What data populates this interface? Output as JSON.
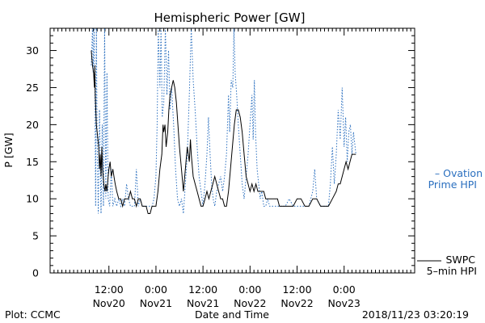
{
  "chart_data": {
    "type": "line",
    "title": "Hemispheric Power [GW]",
    "ylabel": "P [GW]",
    "xlabel": "Date and Time",
    "ylim": [
      0,
      33
    ],
    "y_ticks": [
      0,
      5,
      10,
      15,
      20,
      25,
      30
    ],
    "x_hours_range": [
      -15,
      78
    ],
    "x_ticks": [
      {
        "hours": 0,
        "line1": "12:00",
        "line2": "Nov20"
      },
      {
        "hours": 12,
        "line1": "0:00",
        "line2": "Nov21"
      },
      {
        "hours": 24,
        "line1": "12:00",
        "line2": "Nov21"
      },
      {
        "hours": 36,
        "line1": "0:00",
        "line2": "Nov22"
      },
      {
        "hours": 48,
        "line1": "12:00",
        "line2": "Nov22"
      },
      {
        "hours": 60,
        "line1": "0:00",
        "line2": "Nov23"
      }
    ],
    "footer_left": "Plot: CCMC",
    "footer_right": "2018/11/23 03:20:19",
    "legend": {
      "ovation": {
        "line1": "– Ovation",
        "line2": "Prime HPI",
        "color": "#2a6fbf"
      },
      "swpc": {
        "line1": "SWPC",
        "line2": "5–min HPI",
        "color": "#000000"
      }
    },
    "series": [
      {
        "name": "SWPC 5-min HPI",
        "color": "#000000",
        "style": "solid",
        "points": [
          [
            -4.5,
            30
          ],
          [
            -4.2,
            28
          ],
          [
            -3.9,
            27
          ],
          [
            -3.7,
            25
          ],
          [
            -3.6,
            28
          ],
          [
            -3.5,
            24
          ],
          [
            -3.2,
            20
          ],
          [
            -3.0,
            19
          ],
          [
            -2.8,
            18
          ],
          [
            -2.6,
            17
          ],
          [
            -2.4,
            14
          ],
          [
            -2.2,
            16
          ],
          [
            -2.0,
            13
          ],
          [
            -1.8,
            17
          ],
          [
            -1.6,
            14
          ],
          [
            -1.3,
            12
          ],
          [
            -1.0,
            11
          ],
          [
            -0.8,
            12
          ],
          [
            -0.5,
            11
          ],
          [
            -0.2,
            13
          ],
          [
            0.0,
            14
          ],
          [
            0.3,
            15
          ],
          [
            0.6,
            13
          ],
          [
            1.0,
            14
          ],
          [
            1.3,
            13
          ],
          [
            1.6,
            12
          ],
          [
            2.0,
            11
          ],
          [
            2.5,
            10
          ],
          [
            3.0,
            10
          ],
          [
            3.5,
            9
          ],
          [
            4.0,
            10
          ],
          [
            4.5,
            10
          ],
          [
            5.0,
            10
          ],
          [
            5.5,
            11
          ],
          [
            6.0,
            10
          ],
          [
            6.5,
            10
          ],
          [
            7.0,
            9
          ],
          [
            7.5,
            10
          ],
          [
            8.0,
            10
          ],
          [
            8.5,
            9
          ],
          [
            9.0,
            9
          ],
          [
            9.5,
            9
          ],
          [
            10.0,
            8
          ],
          [
            10.5,
            8
          ],
          [
            11.0,
            9
          ],
          [
            11.5,
            9
          ],
          [
            12.0,
            9
          ],
          [
            12.5,
            11
          ],
          [
            13.0,
            14
          ],
          [
            13.5,
            16
          ],
          [
            13.8,
            20
          ],
          [
            14.0,
            19
          ],
          [
            14.3,
            20
          ],
          [
            14.6,
            17
          ],
          [
            15.0,
            19
          ],
          [
            15.3,
            22
          ],
          [
            15.6,
            24
          ],
          [
            16.0,
            25
          ],
          [
            16.4,
            26
          ],
          [
            16.8,
            25
          ],
          [
            17.2,
            23
          ],
          [
            17.6,
            20
          ],
          [
            18.0,
            17
          ],
          [
            18.5,
            14
          ],
          [
            19.0,
            11
          ],
          [
            19.5,
            14
          ],
          [
            20.0,
            17
          ],
          [
            20.5,
            15
          ],
          [
            20.8,
            18
          ],
          [
            21.0,
            16
          ],
          [
            21.5,
            13
          ],
          [
            22.0,
            12
          ],
          [
            22.5,
            11
          ],
          [
            23.0,
            10
          ],
          [
            23.5,
            9
          ],
          [
            24.0,
            9
          ],
          [
            24.5,
            10
          ],
          [
            25.0,
            11
          ],
          [
            25.5,
            10
          ],
          [
            26.0,
            11
          ],
          [
            26.5,
            12
          ],
          [
            27.0,
            13
          ],
          [
            27.5,
            12
          ],
          [
            28.0,
            11
          ],
          [
            28.5,
            10
          ],
          [
            29.0,
            10
          ],
          [
            29.5,
            9
          ],
          [
            30.0,
            9
          ],
          [
            30.5,
            11
          ],
          [
            31.0,
            14
          ],
          [
            31.5,
            17
          ],
          [
            32.0,
            20
          ],
          [
            32.5,
            22
          ],
          [
            33.0,
            22
          ],
          [
            33.5,
            21
          ],
          [
            34.0,
            19
          ],
          [
            34.5,
            16
          ],
          [
            35.0,
            13
          ],
          [
            35.5,
            12
          ],
          [
            36.0,
            11
          ],
          [
            36.5,
            12
          ],
          [
            37.0,
            11
          ],
          [
            37.5,
            12
          ],
          [
            38.0,
            11
          ],
          [
            38.5,
            11
          ],
          [
            39.0,
            11
          ],
          [
            39.5,
            11
          ],
          [
            40.0,
            10
          ],
          [
            41.0,
            10
          ],
          [
            42.0,
            10
          ],
          [
            43.0,
            10
          ],
          [
            43.5,
            9
          ],
          [
            44.0,
            9
          ],
          [
            45.0,
            9
          ],
          [
            46.0,
            9
          ],
          [
            47.0,
            9
          ],
          [
            48.0,
            10
          ],
          [
            49.0,
            10
          ],
          [
            50.0,
            9
          ],
          [
            51.0,
            9
          ],
          [
            52.0,
            10
          ],
          [
            53.0,
            10
          ],
          [
            54.0,
            9
          ],
          [
            55.0,
            9
          ],
          [
            56.0,
            9
          ],
          [
            57.0,
            10
          ],
          [
            58.0,
            11
          ],
          [
            58.5,
            12
          ],
          [
            59.0,
            12
          ],
          [
            59.5,
            13
          ],
          [
            60.0,
            14
          ],
          [
            60.5,
            15
          ],
          [
            61.0,
            14
          ],
          [
            61.5,
            15
          ],
          [
            62.0,
            16
          ],
          [
            62.5,
            16
          ],
          [
            63.0,
            16
          ]
        ]
      },
      {
        "name": "Ovation Prime HPI",
        "color": "#2a6fbf",
        "style": "dotted",
        "points": [
          [
            -4.5,
            28
          ],
          [
            -4.2,
            33
          ],
          [
            -4.0,
            27
          ],
          [
            -3.8,
            33
          ],
          [
            -3.6,
            26
          ],
          [
            -3.4,
            9
          ],
          [
            -3.2,
            33
          ],
          [
            -3.0,
            18
          ],
          [
            -2.7,
            8
          ],
          [
            -2.4,
            22
          ],
          [
            -2.0,
            8
          ],
          [
            -1.7,
            20
          ],
          [
            -1.4,
            9
          ],
          [
            -1.1,
            33
          ],
          [
            -0.8,
            10
          ],
          [
            -0.5,
            27
          ],
          [
            -0.2,
            10
          ],
          [
            0.2,
            9
          ],
          [
            0.6,
            14
          ],
          [
            1.0,
            9
          ],
          [
            1.5,
            10
          ],
          [
            2.0,
            9
          ],
          [
            2.5,
            10
          ],
          [
            3.0,
            9
          ],
          [
            3.5,
            10
          ],
          [
            4.0,
            9
          ],
          [
            4.5,
            12
          ],
          [
            5.0,
            10
          ],
          [
            5.5,
            9
          ],
          [
            6.0,
            9
          ],
          [
            6.5,
            9
          ],
          [
            7.0,
            14
          ],
          [
            7.5,
            9
          ],
          [
            8.0,
            10
          ],
          [
            8.5,
            9
          ],
          [
            9.0,
            9
          ],
          [
            9.5,
            9
          ],
          [
            10.0,
            9
          ],
          [
            10.5,
            9
          ],
          [
            11.0,
            9
          ],
          [
            11.5,
            10
          ],
          [
            12.0,
            13
          ],
          [
            12.3,
            20
          ],
          [
            12.6,
            33
          ],
          [
            13.0,
            25
          ],
          [
            13.3,
            33
          ],
          [
            13.6,
            21
          ],
          [
            14.0,
            23
          ],
          [
            14.4,
            33
          ],
          [
            14.8,
            24
          ],
          [
            15.2,
            30
          ],
          [
            15.6,
            22
          ],
          [
            16.0,
            25
          ],
          [
            16.5,
            20
          ],
          [
            17.0,
            14
          ],
          [
            17.5,
            10
          ],
          [
            18.0,
            9
          ],
          [
            18.5,
            10
          ],
          [
            19.0,
            8
          ],
          [
            19.5,
            12
          ],
          [
            20.0,
            16
          ],
          [
            20.5,
            24
          ],
          [
            21.0,
            33
          ],
          [
            21.5,
            26
          ],
          [
            22.0,
            22
          ],
          [
            22.5,
            17
          ],
          [
            23.0,
            13
          ],
          [
            23.5,
            11
          ],
          [
            24.0,
            9
          ],
          [
            24.5,
            12
          ],
          [
            25.0,
            16
          ],
          [
            25.4,
            21
          ],
          [
            25.8,
            16
          ],
          [
            26.2,
            12
          ],
          [
            26.6,
            10
          ],
          [
            27.0,
            9
          ],
          [
            27.5,
            11
          ],
          [
            28.0,
            12
          ],
          [
            28.5,
            13
          ],
          [
            29.0,
            11
          ],
          [
            29.5,
            13
          ],
          [
            30.0,
            16
          ],
          [
            30.5,
            24
          ],
          [
            30.8,
            19
          ],
          [
            31.2,
            26
          ],
          [
            31.6,
            25
          ],
          [
            31.9,
            33
          ],
          [
            32.2,
            27
          ],
          [
            32.6,
            24
          ],
          [
            33.0,
            20
          ],
          [
            33.5,
            16
          ],
          [
            34.0,
            12
          ],
          [
            34.5,
            10
          ],
          [
            35.0,
            13
          ],
          [
            35.5,
            16
          ],
          [
            36.0,
            20
          ],
          [
            36.5,
            24
          ],
          [
            36.8,
            18
          ],
          [
            37.1,
            26
          ],
          [
            37.4,
            19
          ],
          [
            37.8,
            14
          ],
          [
            38.2,
            12
          ],
          [
            38.6,
            10
          ],
          [
            39.0,
            11
          ],
          [
            39.5,
            9
          ],
          [
            40.0,
            9
          ],
          [
            40.5,
            10
          ],
          [
            41.0,
            9
          ],
          [
            42.0,
            9
          ],
          [
            43.0,
            9
          ],
          [
            44.0,
            9
          ],
          [
            45.0,
            9
          ],
          [
            46.0,
            10
          ],
          [
            47.0,
            9
          ],
          [
            48.0,
            9
          ],
          [
            49.0,
            9
          ],
          [
            50.0,
            9
          ],
          [
            51.0,
            9
          ],
          [
            52.0,
            11
          ],
          [
            52.5,
            14
          ],
          [
            53.0,
            10
          ],
          [
            54.0,
            9
          ],
          [
            55.0,
            9
          ],
          [
            56.0,
            9
          ],
          [
            56.5,
            12
          ],
          [
            57.0,
            17
          ],
          [
            57.5,
            12
          ],
          [
            58.0,
            16
          ],
          [
            58.5,
            22
          ],
          [
            59.0,
            18
          ],
          [
            59.5,
            25
          ],
          [
            60.0,
            17
          ],
          [
            60.4,
            21
          ],
          [
            60.8,
            15
          ],
          [
            61.2,
            19
          ],
          [
            61.6,
            20
          ],
          [
            62.0,
            16
          ],
          [
            62.4,
            19
          ],
          [
            62.8,
            17
          ],
          [
            63.0,
            16
          ]
        ]
      }
    ]
  }
}
